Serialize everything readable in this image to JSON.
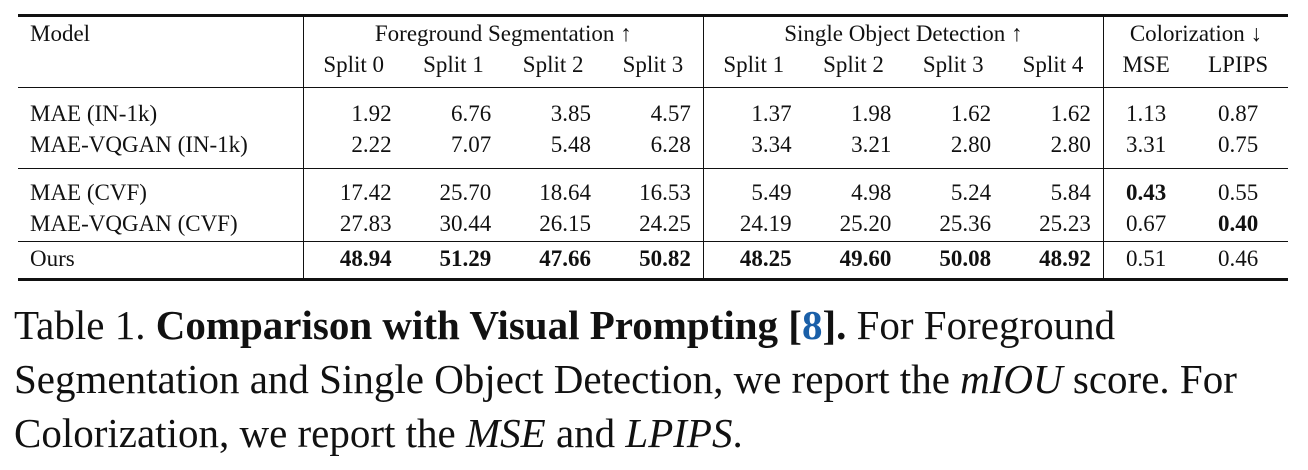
{
  "table": {
    "header": {
      "model": "Model",
      "groups": [
        {
          "label": "Foreground Segmentation ↑"
        },
        {
          "label": "Single Object Detection ↑"
        },
        {
          "label": "Colorization ↓"
        }
      ],
      "subcolumns": [
        "Split 0",
        "Split 1",
        "Split 2",
        "Split 3",
        "Split 1",
        "Split 2",
        "Split 3",
        "Split 4",
        "MSE",
        "LPIPS"
      ]
    },
    "rows": [
      {
        "model": "MAE (IN-1k)",
        "values": [
          "1.92",
          "6.76",
          "3.85",
          "4.57",
          "1.37",
          "1.98",
          "1.62",
          "1.62",
          "1.13",
          "0.87"
        ]
      },
      {
        "model": "MAE-VQGAN (IN-1k)",
        "values": [
          "2.22",
          "7.07",
          "5.48",
          "6.28",
          "3.34",
          "3.21",
          "2.80",
          "2.80",
          "3.31",
          "0.75"
        ]
      },
      {
        "model": "MAE (CVF)",
        "values": [
          "17.42",
          "25.70",
          "18.64",
          "16.53",
          "5.49",
          "4.98",
          "5.24",
          "5.84",
          "0.43",
          "0.55"
        ]
      },
      {
        "model": "MAE-VQGAN (CVF)",
        "values": [
          "27.83",
          "30.44",
          "26.15",
          "24.25",
          "24.19",
          "25.20",
          "25.36",
          "25.23",
          "0.67",
          "0.40"
        ]
      },
      {
        "model": "Ours",
        "values": [
          "48.94",
          "51.29",
          "47.66",
          "50.82",
          "48.25",
          "49.60",
          "50.08",
          "48.92",
          "0.51",
          "0.46"
        ]
      }
    ]
  },
  "caption": {
    "prefix": "Table 1.",
    "bold_title": "Comparison with Visual Prompting [",
    "ref": "8",
    "bold_end": "].",
    "text1": "For Foreground Segmentation and Single Object Detection, we report the",
    "metric1": "mIOU",
    "text2": "score. For Colorization, we report the",
    "metric2": "MSE",
    "text3": "and",
    "metric3": "LPIPS",
    "text4": "."
  }
}
